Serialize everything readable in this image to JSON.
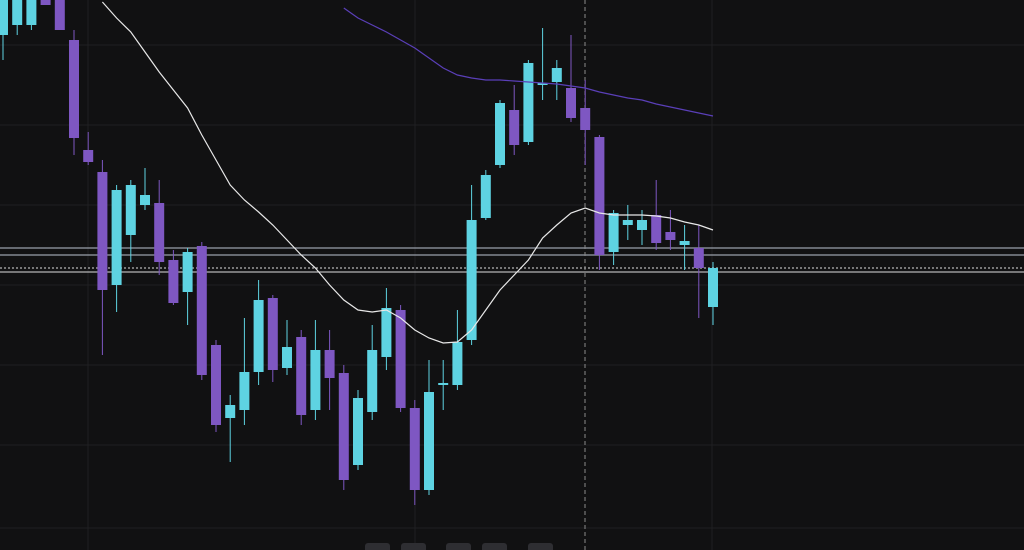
{
  "chart_data": {
    "type": "candlestick",
    "ylim": [
      0,
      550
    ],
    "up_color": "#5ed3e2",
    "down_color": "#7e57c2",
    "categories": [
      null,
      null,
      null,
      null,
      null,
      null,
      null,
      null,
      null,
      null,
      null,
      null,
      null,
      null,
      null,
      null,
      null,
      null,
      null,
      null,
      null,
      null,
      null,
      null,
      null,
      null,
      null,
      null,
      null,
      null,
      null,
      null,
      null,
      null,
      null,
      null,
      null,
      null,
      null,
      null,
      null,
      null,
      null,
      null,
      null,
      null,
      null,
      null,
      null,
      null,
      null
    ],
    "open": [
      515,
      525,
      525,
      550,
      550,
      510,
      400,
      378,
      265,
      315,
      345,
      347,
      290,
      258,
      304,
      205,
      132,
      140,
      178,
      252,
      182,
      213,
      140,
      200,
      177,
      85,
      138,
      193,
      240,
      142,
      60,
      165,
      165,
      210,
      332,
      385,
      440,
      408,
      465,
      468,
      462,
      442,
      413,
      298,
      325,
      320,
      335,
      318,
      305,
      302,
      243
    ],
    "high": [
      550,
      550,
      550,
      550,
      550,
      520,
      418,
      390,
      365,
      370,
      382,
      370,
      300,
      302,
      308,
      210,
      155,
      232,
      270,
      255,
      230,
      220,
      230,
      220,
      185,
      160,
      225,
      262,
      245,
      150,
      190,
      190,
      240,
      365,
      380,
      450,
      465,
      490,
      522,
      490,
      515,
      470,
      415,
      340,
      345,
      340,
      370,
      340,
      325,
      325,
      288
    ],
    "low": [
      490,
      515,
      520,
      545,
      520,
      395,
      385,
      195,
      238,
      288,
      340,
      275,
      245,
      225,
      170,
      118,
      88,
      125,
      165,
      168,
      175,
      125,
      130,
      140,
      60,
      80,
      130,
      180,
      138,
      45,
      55,
      140,
      160,
      205,
      330,
      382,
      395,
      405,
      450,
      450,
      428,
      385,
      280,
      285,
      310,
      305,
      300,
      300,
      280,
      232,
      225
    ],
    "close": [
      550,
      550,
      550,
      545,
      520,
      412,
      388,
      260,
      360,
      365,
      355,
      288,
      247,
      298,
      175,
      125,
      145,
      178,
      250,
      180,
      203,
      135,
      200,
      172,
      70,
      152,
      200,
      242,
      142,
      60,
      158,
      167,
      208,
      330,
      375,
      447,
      405,
      487,
      467,
      482,
      432,
      420,
      295,
      337,
      330,
      330,
      307,
      310,
      309,
      282,
      282
    ],
    "lines": [
      {
        "color": "#e8e8e8",
        "values": [
          null,
          null,
          null,
          null,
          null,
          null,
          null,
          548,
          532,
          518,
          498,
          478,
          460,
          442,
          415,
          390,
          365,
          350,
          338,
          325,
          310,
          295,
          282,
          265,
          250,
          240,
          238,
          240,
          232,
          220,
          212,
          207,
          208,
          220,
          240,
          260,
          275,
          290,
          312,
          325,
          337,
          342,
          337,
          335,
          335,
          335,
          334,
          332,
          328,
          325,
          320
        ]
      },
      {
        "color": "#5a3fb8",
        "values": [
          null,
          null,
          null,
          null,
          null,
          null,
          null,
          null,
          null,
          null,
          null,
          null,
          null,
          null,
          null,
          null,
          null,
          null,
          null,
          null,
          null,
          null,
          null,
          null,
          542,
          532,
          525,
          518,
          510,
          502,
          492,
          482,
          475,
          472,
          470,
          470,
          469,
          468,
          467,
          466,
          464,
          462,
          458,
          455,
          452,
          450,
          446,
          443,
          440,
          437,
          434
        ]
      }
    ]
  }
}
